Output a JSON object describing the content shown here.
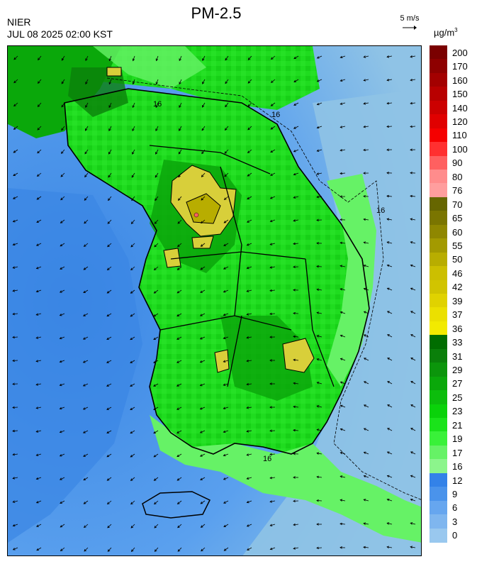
{
  "header": {
    "title": "PM-2.5",
    "agency": "NIER",
    "timestamp": "JUL 08 2025 02:00 KST"
  },
  "wind_scale": {
    "label": "5 m/s",
    "icon": "right-arrow-icon"
  },
  "legend": {
    "unit_base": "µg/m",
    "unit_exp": "3",
    "labels": [
      "200",
      "170",
      "160",
      "150",
      "140",
      "120",
      "110",
      "100",
      "90",
      "80",
      "76",
      "70",
      "65",
      "60",
      "55",
      "50",
      "46",
      "42",
      "39",
      "37",
      "36",
      "33",
      "31",
      "29",
      "27",
      "25",
      "23",
      "21",
      "19",
      "17",
      "16",
      "12",
      "9",
      "6",
      "3",
      "0"
    ],
    "colors": [
      "#7a0000",
      "#8e0000",
      "#a30000",
      "#b80000",
      "#cc0000",
      "#e00000",
      "#f50000",
      "#ff3030",
      "#ff6060",
      "#ff8c8c",
      "#ff9e9e",
      "#666600",
      "#7a7500",
      "#8f8700",
      "#a39a00",
      "#b8ad00",
      "#ccbf00",
      "#d1c400",
      "#e0d200",
      "#ebe000",
      "#f2ea00",
      "#006d00",
      "#0a7f0a",
      "#0b950b",
      "#0aa80a",
      "#0cbd0c",
      "#0ad20a",
      "#1ae31a",
      "#39f139",
      "#66f266",
      "#8cf58c",
      "#3382e8",
      "#4a93eb",
      "#66a6ef",
      "#7fb6ef",
      "#99c8ef"
    ]
  },
  "map": {
    "contour_label": "16",
    "colors": {
      "sea_light": "#8fc3e6",
      "sea_mid": "#5aa0ee",
      "sea_deep": "#3a86e4",
      "land_green": "#1fdc1f",
      "land_dark": "#0aa40a",
      "land_light": "#66f266",
      "hotspot": "#d8cf3a"
    }
  }
}
